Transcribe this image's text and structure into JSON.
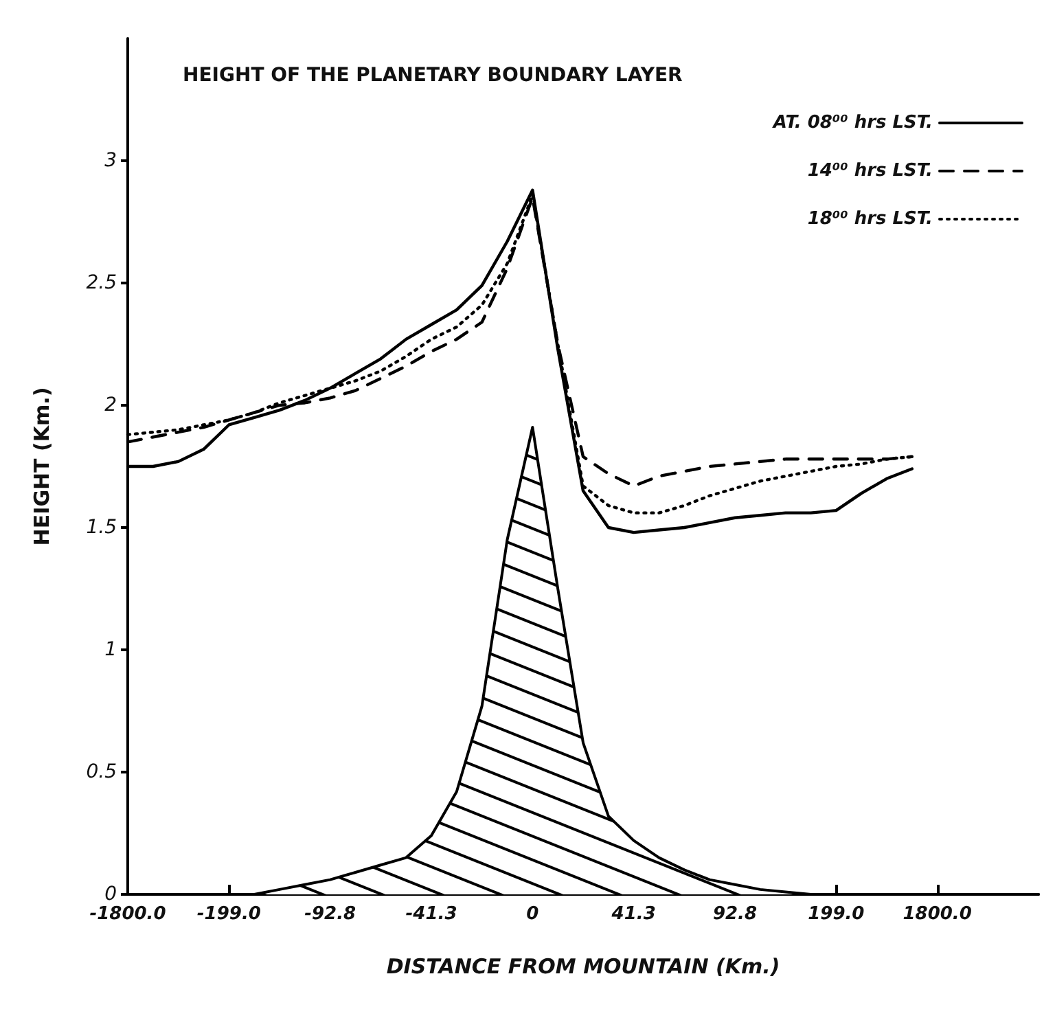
{
  "chart_data": {
    "type": "line",
    "title": "HEIGHT OF THE PLANETARY BOUNDARY LAYER",
    "xlabel": "DISTANCE FROM MOUNTAIN (Km.)",
    "ylabel": "HEIGHT (Km.)",
    "categories": [
      "-1800.0",
      null,
      null,
      null,
      "-199.0",
      null,
      null,
      null,
      "-92.8",
      null,
      null,
      null,
      "-41.3",
      null,
      null,
      null,
      "0",
      null,
      null,
      null,
      "41.3",
      null,
      null,
      null,
      "92.8",
      null,
      null,
      null,
      "199.0",
      null,
      null,
      null,
      "1800.0",
      null,
      null,
      null,
      null
    ],
    "series": [
      {
        "name": "AT. 08⁰⁰ hrs LST.",
        "color": "#000000",
        "line_style": "solid",
        "values": [
          1.75,
          1.75,
          1.77,
          1.82,
          1.92,
          1.95,
          1.98,
          2.02,
          2.07,
          2.13,
          2.19,
          2.27,
          2.33,
          2.39,
          2.49,
          2.67,
          2.88,
          2.23,
          1.65,
          1.5,
          1.48,
          1.49,
          1.5,
          1.52,
          1.54,
          1.55,
          1.56,
          1.56,
          1.57,
          1.64,
          1.7,
          1.74,
          null,
          null,
          null,
          null,
          null
        ]
      },
      {
        "name": "14⁰⁰ hrs LST.",
        "color": "#000000",
        "line_style": "dashed",
        "values": [
          1.85,
          1.87,
          1.89,
          1.91,
          1.94,
          1.97,
          2.0,
          2.01,
          2.03,
          2.06,
          2.11,
          2.16,
          2.22,
          2.27,
          2.34,
          2.56,
          2.85,
          2.25,
          1.79,
          1.72,
          1.67,
          1.71,
          1.73,
          1.75,
          1.76,
          1.77,
          1.78,
          1.78,
          1.78,
          1.78,
          1.78,
          1.79,
          null,
          null,
          null,
          null,
          null
        ]
      },
      {
        "name": "18⁰⁰ hrs LST.",
        "color": "#000000",
        "line_style": "dotted",
        "values": [
          1.88,
          1.89,
          1.9,
          1.92,
          1.94,
          1.97,
          2.01,
          2.04,
          2.07,
          2.1,
          2.14,
          2.2,
          2.27,
          2.32,
          2.41,
          2.58,
          2.86,
          2.25,
          1.67,
          1.59,
          1.56,
          1.56,
          1.59,
          1.63,
          1.66,
          1.69,
          1.71,
          1.73,
          1.75,
          1.76,
          1.78,
          1.79,
          null,
          null,
          null,
          null,
          null
        ]
      },
      {
        "type": "area",
        "color": "#000000",
        "values": [
          0,
          0,
          0,
          0,
          0,
          0,
          0.02,
          0.04,
          0.06,
          0.09,
          0.12,
          0.15,
          0.24,
          0.42,
          0.77,
          1.45,
          1.91,
          1.25,
          0.62,
          0.32,
          0.22,
          0.15,
          0.1,
          0.06,
          0.04,
          0.02,
          0.01,
          0,
          0,
          0,
          0,
          0,
          0,
          0,
          0,
          0,
          0
        ]
      }
    ],
    "ylim": [
      0,
      3.5
    ],
    "yticks": [
      0,
      0.5,
      1,
      1.5,
      2,
      2.5,
      3
    ],
    "grid": false,
    "legend": "top right",
    "marker": "none"
  }
}
